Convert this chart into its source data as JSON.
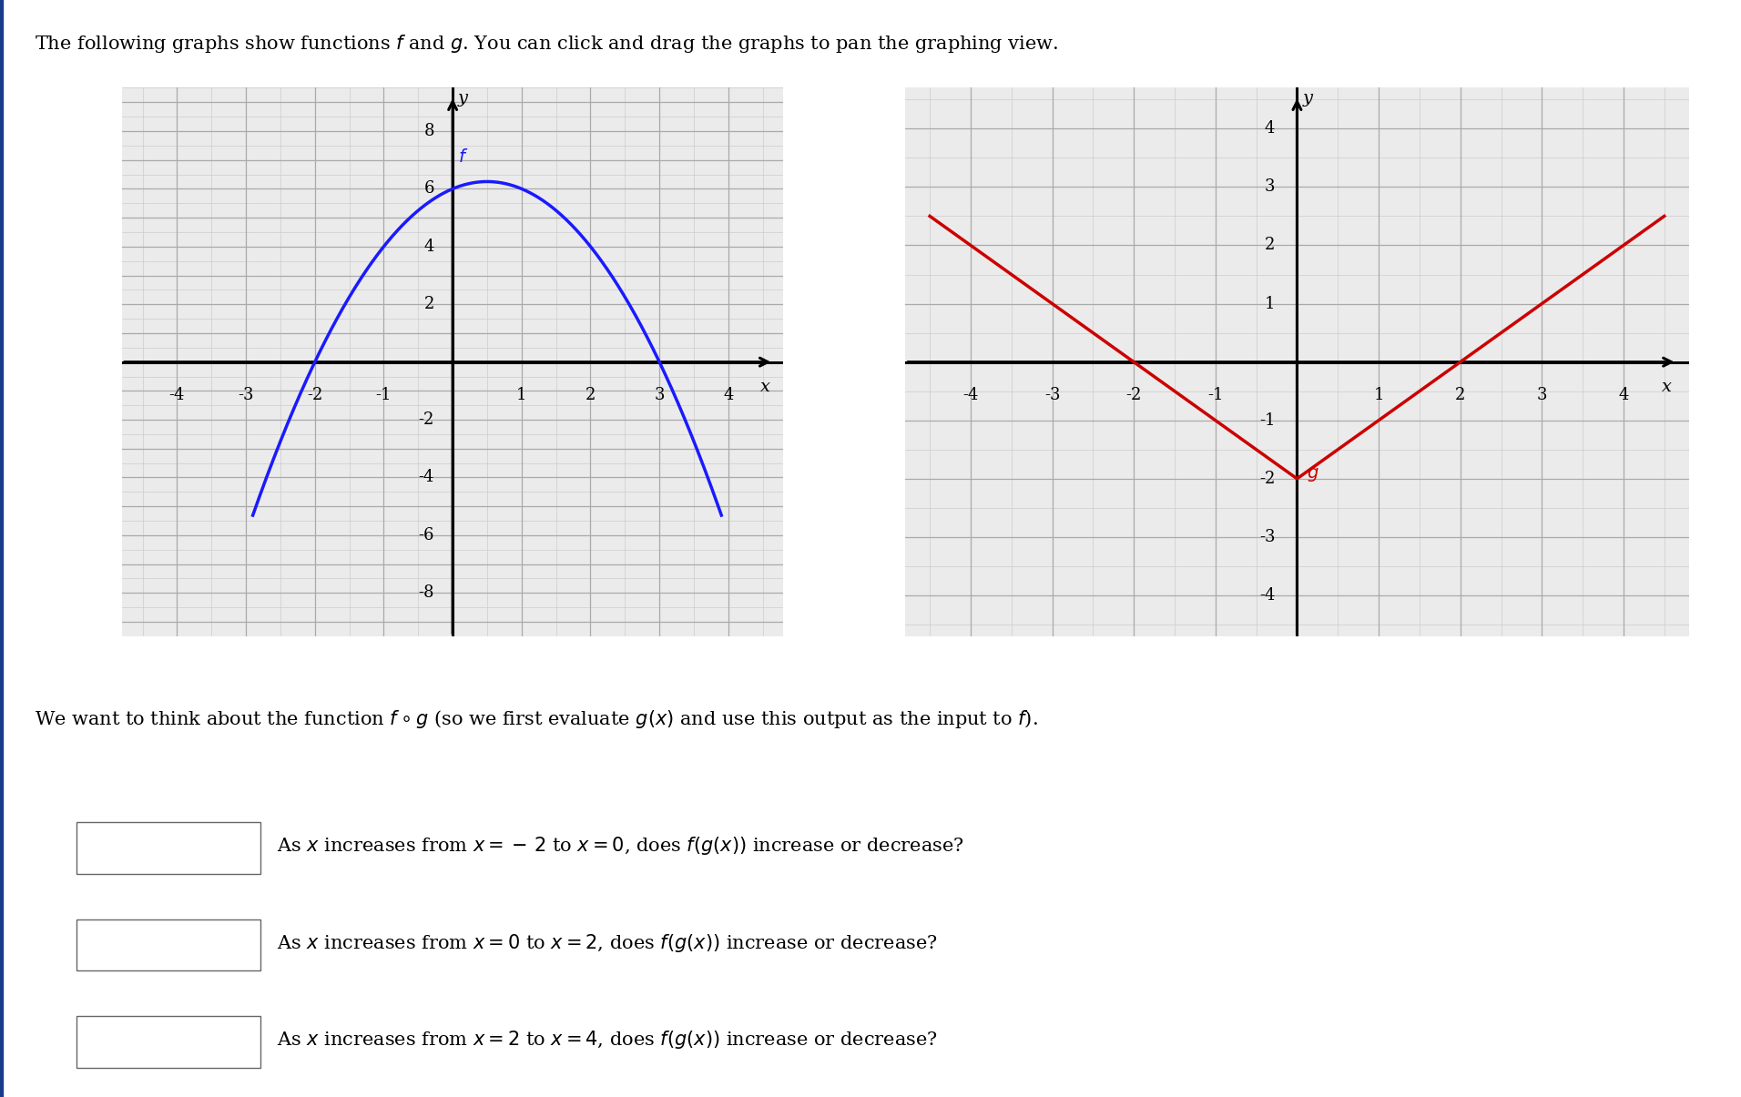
{
  "title_text_parts": [
    "The following graphs show functions ",
    "f",
    " and ",
    "g",
    ". You can click and drag the graphs to pan the graphing view."
  ],
  "f_label": "f",
  "g_label": "g",
  "bg_color": "#ffffff",
  "grid_color_major": "#aaaaaa",
  "grid_color_minor": "#cccccc",
  "plot_bg": "#ebebeb",
  "f_color": "#1a1aff",
  "g_color": "#cc0000",
  "left_xlim": [
    -4.8,
    4.8
  ],
  "left_ylim": [
    -9.5,
    9.5
  ],
  "left_xticks": [
    -4,
    -3,
    -2,
    -1,
    1,
    2,
    3,
    4
  ],
  "left_yticks": [
    -8,
    -6,
    -4,
    -2,
    2,
    4,
    6,
    8
  ],
  "right_xlim": [
    -4.8,
    4.8
  ],
  "right_ylim": [
    -4.7,
    4.7
  ],
  "right_xticks": [
    -4,
    -3,
    -2,
    -1,
    1,
    2,
    3,
    4
  ],
  "right_yticks": [
    -4,
    -3,
    -2,
    -1,
    1,
    2,
    3,
    4
  ],
  "compose_text_parts": [
    "We want to think about the function ",
    "f",
    " ∘ ",
    "g",
    " (so we first evaluate ",
    "g",
    "(",
    "x",
    ") and use this output as the input to ",
    "f",
    ")."
  ],
  "q1_parts": [
    "As ",
    "x",
    " increases from ",
    "x",
    " = − 2 to ",
    "x",
    " = 0, does ",
    "f",
    "(",
    "g",
    "(",
    "x",
    ")) increase or decrease?"
  ],
  "q2_parts": [
    "As ",
    "x",
    " increases from ",
    "x",
    " = 0 to ",
    "x",
    " = 2, does ",
    "f",
    "(",
    "g",
    "(",
    "x",
    ")) increase or decrease?"
  ],
  "q3_parts": [
    "As ",
    "x",
    " increases from ",
    "x",
    " = 2 to ",
    "x",
    " = 4, does ",
    "f",
    "(",
    "g",
    "(",
    "x",
    ")) increase or decrease?"
  ]
}
